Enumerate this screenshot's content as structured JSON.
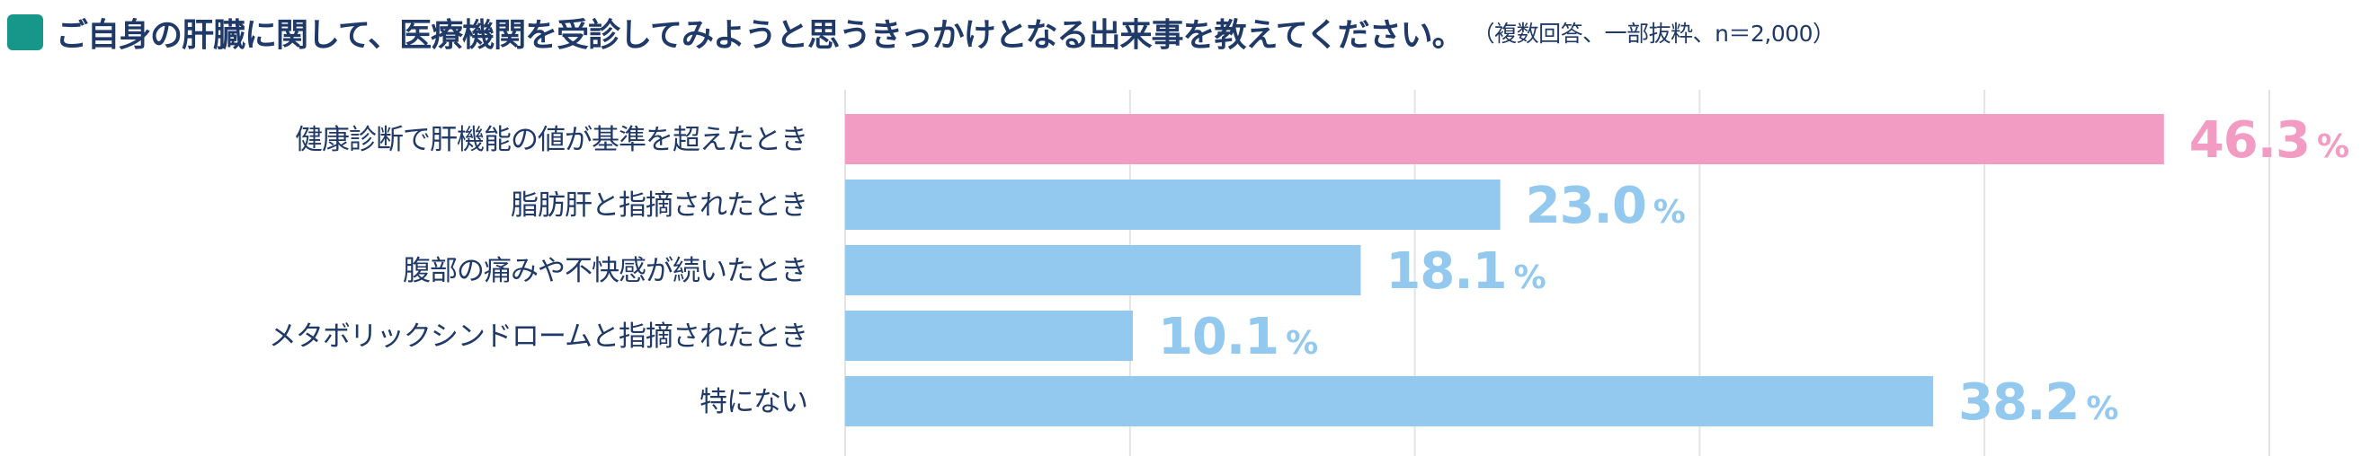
{
  "chart_data": {
    "type": "bar",
    "orientation": "horizontal",
    "title": "ご自身の肝臓に関して、医療機関を受診してみようと思うきっかけとなる出来事を教えてください。",
    "subtitle": "（複数回答、一部抜粋、n＝2,000）",
    "categories": [
      "健康診断で肝機能の値が基準を超えたとき",
      "脂肪肝と指摘されたとき",
      "腹部の痛みや不快感が続いたとき",
      "メタボリックシンドロームと指摘されたとき",
      "特にない"
    ],
    "values": [
      46.3,
      23.0,
      18.1,
      10.1,
      38.2
    ],
    "value_labels": [
      "46.3",
      "23.0",
      "18.1",
      "10.1",
      "38.2"
    ],
    "unit": "%",
    "xlim": [
      0,
      50
    ],
    "grid": true,
    "highlight_index": 0,
    "colors": {
      "highlight": "#f29bc3",
      "bar": "#93c9ef",
      "grid": "#e3e3e3",
      "label": "#1f3a68",
      "title_square": "#17968a"
    }
  }
}
